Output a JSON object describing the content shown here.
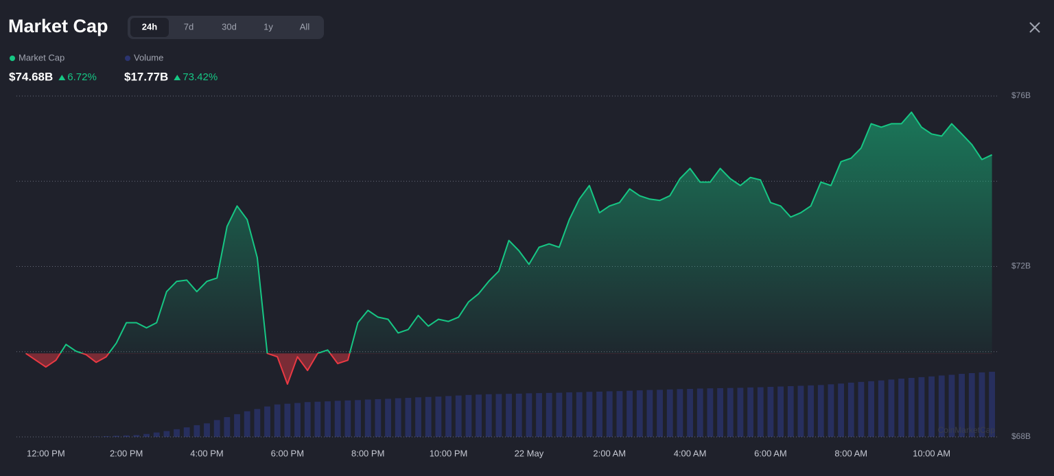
{
  "header": {
    "title": "Market Cap",
    "tabs": [
      "24h",
      "7d",
      "30d",
      "1y",
      "All"
    ],
    "active_tab": 0
  },
  "chart_data": {
    "type": "line",
    "x": [
      -0.5,
      -0.25,
      0,
      0.25,
      0.5,
      0.75,
      1,
      1.25,
      1.5,
      1.75,
      2,
      2.25,
      2.5,
      2.75,
      3,
      3.25,
      3.5,
      3.75,
      4,
      4.25,
      4.5,
      4.75,
      5,
      5.25,
      5.5,
      5.75,
      6,
      6.25,
      6.5,
      6.75,
      7,
      7.25,
      7.5,
      7.75,
      8,
      8.25,
      8.5,
      8.75,
      9,
      9.25,
      9.5,
      9.75,
      10,
      10.25,
      10.5,
      10.75,
      11,
      11.25,
      11.5,
      11.75,
      12,
      12.25,
      12.5,
      12.75,
      13,
      13.25,
      13.5,
      13.75,
      14,
      14.25,
      14.5,
      14.75,
      15,
      15.25,
      15.5,
      15.75,
      16,
      16.25,
      16.5,
      16.75,
      17,
      17.25,
      17.5,
      17.75,
      18,
      18.25,
      18.5,
      18.75,
      19,
      19.25,
      19.5,
      19.75,
      20,
      20.25,
      20.5,
      20.75,
      21,
      21.25,
      21.5,
      21.75,
      22,
      22.25,
      22.5,
      22.75,
      23,
      23.25,
      23.5
    ],
    "series": [
      {
        "name": "Market Cap",
        "color": "#16c784",
        "down_color": "#ea3943",
        "values": [
          69.96,
          69.8,
          69.64,
          69.8,
          70.17,
          70.01,
          69.93,
          69.75,
          69.88,
          70.2,
          70.68,
          70.68,
          70.56,
          70.68,
          71.41,
          71.65,
          71.68,
          71.41,
          71.65,
          71.73,
          72.94,
          73.42,
          73.1,
          72.21,
          69.96,
          69.88,
          69.24,
          69.88,
          69.56,
          69.96,
          70.04,
          69.72,
          69.8,
          70.68,
          70.97,
          70.81,
          70.76,
          70.44,
          70.52,
          70.85,
          70.6,
          70.76,
          70.71,
          70.81,
          71.17,
          71.36,
          71.65,
          71.89,
          72.61,
          72.37,
          72.05,
          72.45,
          72.53,
          72.45,
          73.1,
          73.58,
          73.9,
          73.26,
          73.42,
          73.5,
          73.82,
          73.66,
          73.58,
          73.55,
          73.66,
          74.06,
          74.3,
          73.98,
          73.98,
          74.3,
          74.06,
          73.9,
          74.09,
          74.03,
          73.5,
          73.42,
          73.16,
          73.26,
          73.42,
          73.98,
          73.9,
          74.46,
          74.54,
          74.78,
          75.35,
          75.27,
          75.35,
          75.35,
          75.62,
          75.27,
          75.11,
          75.06,
          75.35,
          75.11,
          74.86,
          74.51,
          74.62
        ]
      },
      {
        "name": "Volume",
        "color": "#2b3470",
        "axis": "y2",
        "values": [
          0,
          0,
          0,
          0,
          0,
          0,
          0,
          0.1,
          0.2,
          0.3,
          0.4,
          0.5,
          0.8,
          1.2,
          1.6,
          2.1,
          2.6,
          3.2,
          3.7,
          4.6,
          5.4,
          6.2,
          7.0,
          7.6,
          8.3,
          8.85,
          9.05,
          9.25,
          9.5,
          9.6,
          9.7,
          9.85,
          9.95,
          10.05,
          10.2,
          10.3,
          10.4,
          10.55,
          10.65,
          10.8,
          10.9,
          11.0,
          11.15,
          11.3,
          11.45,
          11.55,
          11.65,
          11.7,
          11.75,
          11.8,
          11.9,
          11.95,
          12.0,
          12.05,
          12.15,
          12.2,
          12.3,
          12.35,
          12.45,
          12.5,
          12.6,
          12.7,
          12.8,
          12.85,
          12.95,
          13.05,
          13.1,
          13.2,
          13.25,
          13.3,
          13.35,
          13.4,
          13.5,
          13.55,
          13.65,
          13.75,
          13.85,
          13.95,
          14.05,
          14.15,
          14.35,
          14.55,
          14.8,
          15.0,
          15.2,
          15.4,
          15.65,
          15.9,
          16.1,
          16.3,
          16.5,
          16.75,
          16.95,
          17.2,
          17.4,
          17.6,
          17.77
        ]
      }
    ],
    "stats": [
      {
        "value": "$74.68B",
        "change": "6.72%"
      },
      {
        "value": "$17.77B",
        "change": "73.42%"
      }
    ],
    "xlim": [
      -0.73,
      23.66
    ],
    "xticks": [
      {
        "value": 0,
        "label": "12:00 PM"
      },
      {
        "value": 2,
        "label": "2:00 PM"
      },
      {
        "value": 4,
        "label": "4:00 PM"
      },
      {
        "value": 6,
        "label": "6:00 PM"
      },
      {
        "value": 8,
        "label": "8:00 PM"
      },
      {
        "value": 10,
        "label": "10:00 PM"
      },
      {
        "value": 12,
        "label": "22 May"
      },
      {
        "value": 14,
        "label": "2:00 AM"
      },
      {
        "value": 16,
        "label": "4:00 AM"
      },
      {
        "value": 18,
        "label": "6:00 AM"
      },
      {
        "value": 20,
        "label": "8:00 AM"
      },
      {
        "value": 22,
        "label": "10:00 AM"
      }
    ],
    "ylim": [
      68,
      76
    ],
    "yticks": [
      {
        "value": 68,
        "label": "$68B"
      },
      {
        "value": 72,
        "label": "$72B"
      },
      {
        "value": 76,
        "label": "$76B"
      }
    ],
    "ygrid": [
      68,
      70,
      72,
      74,
      76
    ],
    "y2lim": [
      0,
      93
    ],
    "watermark": "CoinMarketCap"
  }
}
